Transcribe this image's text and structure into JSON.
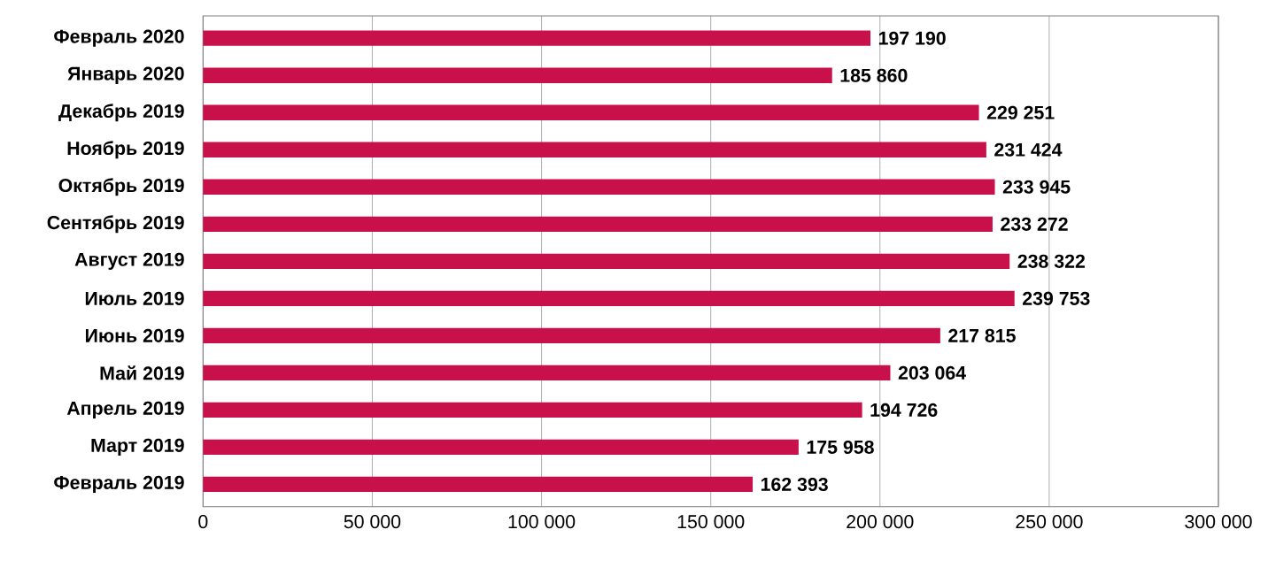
{
  "chart_data": {
    "type": "bar",
    "orientation": "horizontal",
    "categories": [
      "Февраль 2020",
      "Январь 2020",
      "Декабрь 2019",
      "Ноябрь 2019",
      "Октябрь 2019",
      "Сентябрь 2019",
      "Август 2019",
      "Июль 2019",
      "Июнь 2019",
      "Май 2019",
      "Апрель 2019",
      "Март 2019",
      "Февраль 2019"
    ],
    "values": [
      197190,
      185860,
      229251,
      231424,
      233945,
      233272,
      238322,
      239753,
      217815,
      203064,
      194726,
      175958,
      162393
    ],
    "value_labels": [
      "197 190",
      "185 860",
      "229 251",
      "231 424",
      "233 945",
      "233 272",
      "238 322",
      "239 753",
      "217 815",
      "203 064",
      "194 726",
      "175 958",
      "162 393"
    ],
    "color": "#c8104a",
    "xlim": [
      0,
      300000
    ],
    "xticks": [
      0,
      {
        "value": 50000,
        "label": "50 000"
      },
      {
        "value": 100000,
        "label": "100 000"
      },
      {
        "value": 150000,
        "label": "150 000"
      },
      {
        "value": 200000,
        "label": "200 000"
      },
      {
        "value": 250000,
        "label": "250 000"
      },
      {
        "value": 300000,
        "label": "300 000"
      }
    ],
    "grid": "x"
  }
}
